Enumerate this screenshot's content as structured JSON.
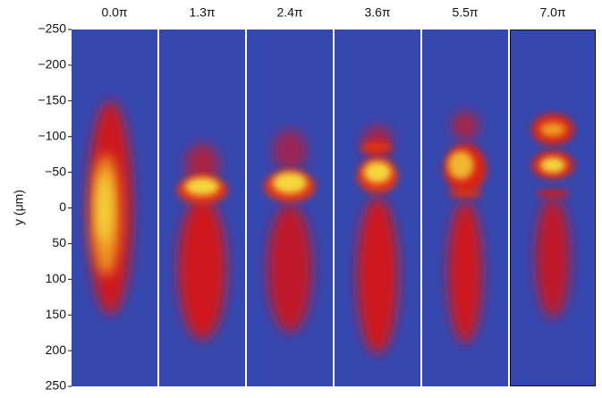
{
  "chart_data": {
    "type": "image",
    "categories": [
      "0.0π",
      "1.3π",
      "2.4π",
      "3.6π",
      "5.5π",
      "7.0π"
    ],
    "ylabel": "y (μm)",
    "ylim": [
      -250,
      250
    ],
    "yticks": [
      {
        "value": -250,
        "label": "−250"
      },
      {
        "value": -200,
        "label": "−200"
      },
      {
        "value": -150,
        "label": "−150"
      },
      {
        "value": -100,
        "label": "−100"
      },
      {
        "value": -50,
        "label": "−50"
      },
      0,
      50,
      100,
      150,
      200,
      250
    ]
  }
}
